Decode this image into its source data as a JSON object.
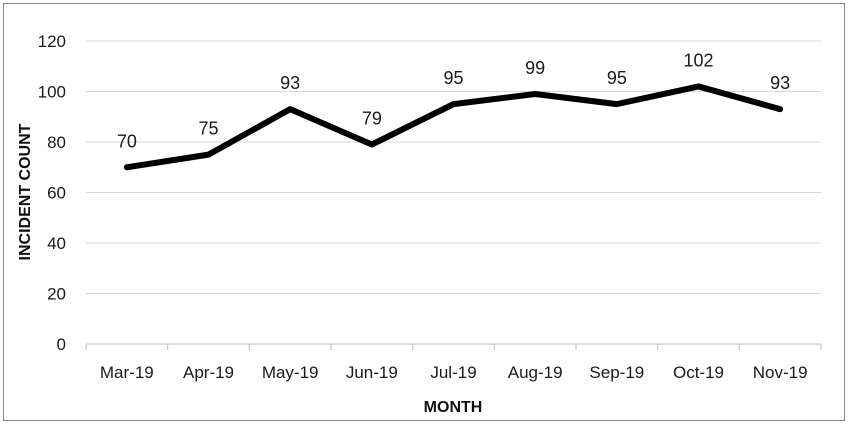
{
  "chart_data": {
    "type": "line",
    "title": "",
    "xlabel": "MONTH",
    "ylabel": "INCIDENT COUNT",
    "categories": [
      "Mar-19",
      "Apr-19",
      "May-19",
      "Jun-19",
      "Jul-19",
      "Aug-19",
      "Sep-19",
      "Oct-19",
      "Nov-19"
    ],
    "series": [
      {
        "values": [
          70,
          75,
          93,
          79,
          95,
          99,
          95,
          102,
          93
        ]
      }
    ],
    "ylim": [
      0,
      120
    ],
    "yticks": [
      0,
      20,
      40,
      60,
      80,
      100,
      120
    ],
    "grid": true,
    "legend": "none",
    "data_labels": true,
    "colors": {
      "line": "#000000",
      "grid": "#d9d9d9",
      "axis": "#bfbfbf",
      "text": "#1a1a1a"
    }
  }
}
